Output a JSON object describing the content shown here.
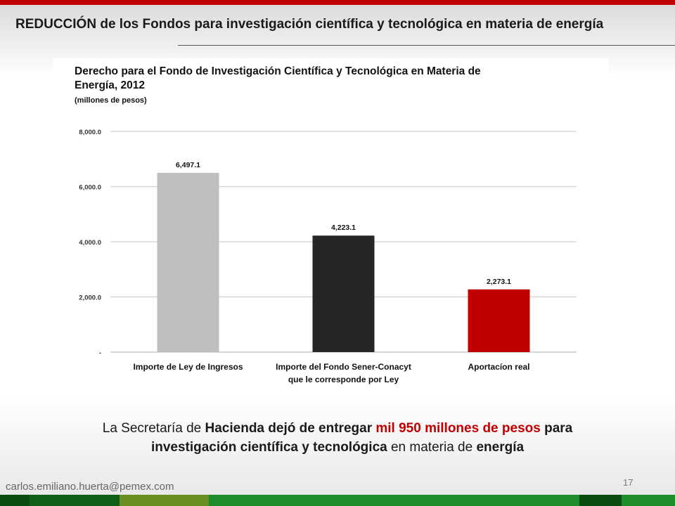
{
  "slide": {
    "title": "REDUCCIÓN de los Fondos para investigación científica y tecnológica en materia de energía",
    "email": "carlos.emiliano.huerta@pemex.com",
    "page_number": "17"
  },
  "caption": {
    "line1_parts": [
      {
        "text": "La Secretaría de ",
        "style": "normal"
      },
      {
        "text": "Hacienda dejó de entregar ",
        "style": "bold"
      },
      {
        "text": "mil 950 millones de pesos",
        "style": "red"
      },
      {
        "text": " para",
        "style": "bold"
      }
    ],
    "line2_parts": [
      {
        "text": "investigación científica y tecnológica",
        "style": "bold"
      },
      {
        "text": " en ",
        "style": "normal"
      },
      {
        "text": "materia de ",
        "style": "normal"
      },
      {
        "text": "energía",
        "style": "bold"
      }
    ]
  },
  "colors": {
    "accent_red": "#c00000",
    "band": [
      "#0b4d10",
      "#0f5f17",
      "#6b8e23",
      "#1e8c2a",
      "#0b4d10",
      "#1e8c2a"
    ]
  },
  "chart_data": {
    "type": "bar",
    "title": "Derecho para el Fondo de Investigación Científica y Tecnológica en Materia de Energía, 2012",
    "subtitle": "(millones de pesos)",
    "categories": [
      [
        "Importe de Ley de Ingresos"
      ],
      [
        "Importe del Fondo Sener-Conacyt",
        "que le corresponde por Ley"
      ],
      [
        "Aportacíon real"
      ]
    ],
    "values": [
      6497.1,
      4223.1,
      2273.1
    ],
    "value_labels": [
      "6,497.1",
      "4,223.1",
      "2,273.1"
    ],
    "bar_colors": [
      "#bfbfbf",
      "#262626",
      "#c00000"
    ],
    "y_ticks": [
      {
        "value": 0,
        "label": "-"
      },
      {
        "value": 2000,
        "label": "2,000.0"
      },
      {
        "value": 4000,
        "label": "4,000.0"
      },
      {
        "value": 6000,
        "label": "6,000.0"
      },
      {
        "value": 8000,
        "label": "8,000.0"
      }
    ],
    "ylim": [
      0,
      8000
    ],
    "grid": true,
    "legend": "none"
  }
}
